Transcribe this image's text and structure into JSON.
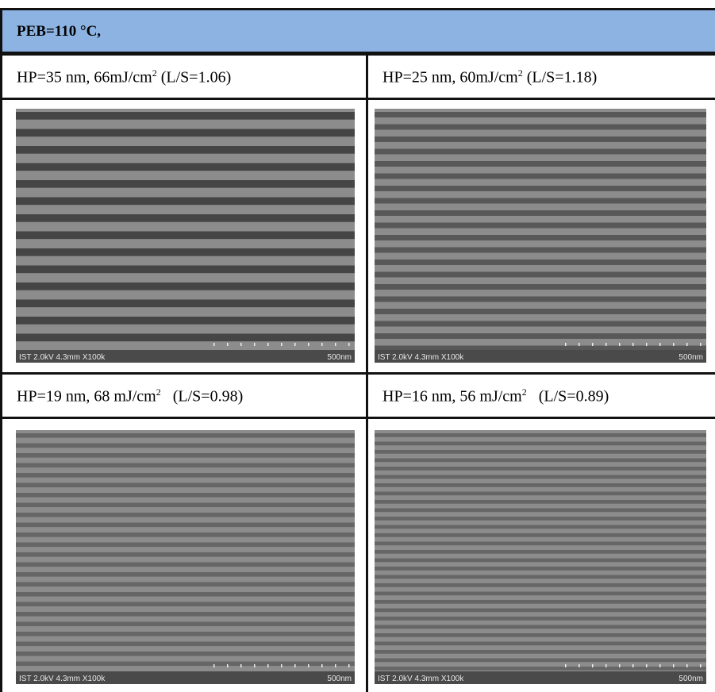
{
  "header": {
    "title": "PEB=110 °C,"
  },
  "cells": [
    {
      "caption": {
        "before": "HP=35 nm, 66mJ/cm",
        "sup": "2",
        "after": " (L/S=1.06)"
      },
      "image": {
        "info": "IST 2.0kV 4.3mm X100k",
        "scale": "500nm"
      }
    },
    {
      "caption": {
        "before": "HP=25 nm, 60mJ/cm",
        "sup": "2",
        "after": " (L/S=1.18)"
      },
      "image": {
        "info": "IST 2.0kV 4.3mm X100k",
        "scale": "500nm"
      }
    },
    {
      "caption": {
        "before": "HP=19 nm, 68 mJ/cm",
        "sup": "2",
        "after": "   (L/S=0.98)"
      },
      "image": {
        "info": "IST 2.0kV 4.3mm X100k",
        "scale": "500nm"
      }
    },
    {
      "caption": {
        "before": "HP=16 nm, 56 mJ/cm",
        "sup": "2",
        "after": "   (L/S=0.89)"
      },
      "image": {
        "info": "IST 2.0kV 4.3mm X100k",
        "scale": "500nm"
      }
    }
  ]
}
